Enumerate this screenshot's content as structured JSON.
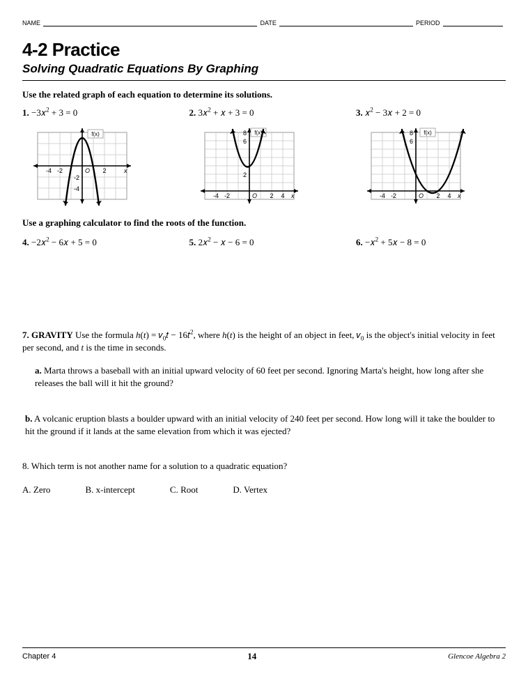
{
  "header": {
    "name_label": "NAME",
    "date_label": "DATE",
    "period_label": "PERIOD"
  },
  "title": "4-2 Practice",
  "subtitle": "Solving Quadratic Equations By Graphing",
  "instruction1": "Use the related graph of each equation to determine its solutions.",
  "problems_row1": [
    {
      "num": "1.",
      "eq_html": "−3𝑥<sup>2</sup>  +  3 = 0"
    },
    {
      "num": "2.",
      "eq_html": "3𝑥<sup>2</sup>  +  𝑥  +  3 = 0"
    },
    {
      "num": "3.",
      "eq_html": "𝑥<sup>2</sup>  −  3𝑥  +  2 = 0"
    }
  ],
  "graphs": [
    {
      "type": "downward-parabola",
      "label": "f(x)",
      "x_ticks": [
        -4,
        -2,
        2
      ],
      "y_ticks": [
        -2,
        -4
      ],
      "xlim": [
        -5,
        5
      ],
      "ylim": [
        -5,
        5
      ],
      "vertex": [
        0,
        3
      ],
      "grid_color": "#c8c8c8",
      "axis_color": "#000",
      "curve_color": "#000",
      "curve_width": 2.2
    },
    {
      "type": "upward-parabola",
      "label": "f(x)",
      "x_ticks": [
        -4,
        -2,
        2,
        4
      ],
      "y_ticks": [
        2,
        6,
        8
      ],
      "xlim": [
        -5,
        5
      ],
      "ylim": [
        -1,
        9
      ],
      "vertex": [
        -0.17,
        2.9
      ],
      "grid_color": "#c8c8c8",
      "axis_color": "#000",
      "curve_color": "#000",
      "curve_width": 2.2
    },
    {
      "type": "upward-parabola",
      "label": "f(x)",
      "x_ticks": [
        -4,
        -2,
        2,
        4
      ],
      "y_ticks": [
        6,
        8
      ],
      "xlim": [
        -5,
        5
      ],
      "ylim": [
        -1,
        9
      ],
      "vertex": [
        1.5,
        -0.25
      ],
      "grid_color": "#c8c8c8",
      "axis_color": "#000",
      "curve_color": "#000",
      "curve_width": 2.2
    }
  ],
  "instruction2": "Use a graphing calculator to find the roots of the function.",
  "problems_row2": [
    {
      "num": "4.",
      "eq_html": "−2𝑥<sup>2</sup>  −  6𝑥  +  5 = 0"
    },
    {
      "num": "5.",
      "eq_html": "2𝑥<sup>2</sup>  −  𝑥  −  6 = 0"
    },
    {
      "num": "6.",
      "eq_html": "−𝑥<sup>2</sup>  +  5𝑥  −  8 = 0"
    }
  ],
  "problem7": {
    "num": "7.",
    "label": "GRAVITY",
    "text_html": " Use the formula <i>h</i>(<i>t</i>) = 𝑣<sub>0</sub>𝑡  −  16𝑡<sup>2</sup>, where <i>h</i>(<i>t</i>) is the height of an object in feet, 𝑣<sub>0</sub> is the object's initial velocity in feet per second, and <i>t</i> is the time in seconds.",
    "part_a": {
      "lett": "a.",
      "text": "Marta throws a baseball with an initial upward velocity of 60 feet per second. Ignoring Marta's height, how long after she releases the ball will it hit the ground?"
    },
    "part_b": {
      "lett": "b.",
      "text": "A volcanic eruption blasts a boulder upward with an initial velocity of 240 feet per second. How long will it take the boulder to hit the ground if it lands at the same elevation from which it was ejected?"
    }
  },
  "problem8": {
    "text": "8.  Which term is not another name for a solution to a quadratic equation?",
    "choices": [
      "A.  Zero",
      "B.  x-intercept",
      "C.  Root",
      "D.  Vertex"
    ]
  },
  "footer": {
    "left": "Chapter 4",
    "mid": "14",
    "right": "Glencoe Algebra 2"
  }
}
